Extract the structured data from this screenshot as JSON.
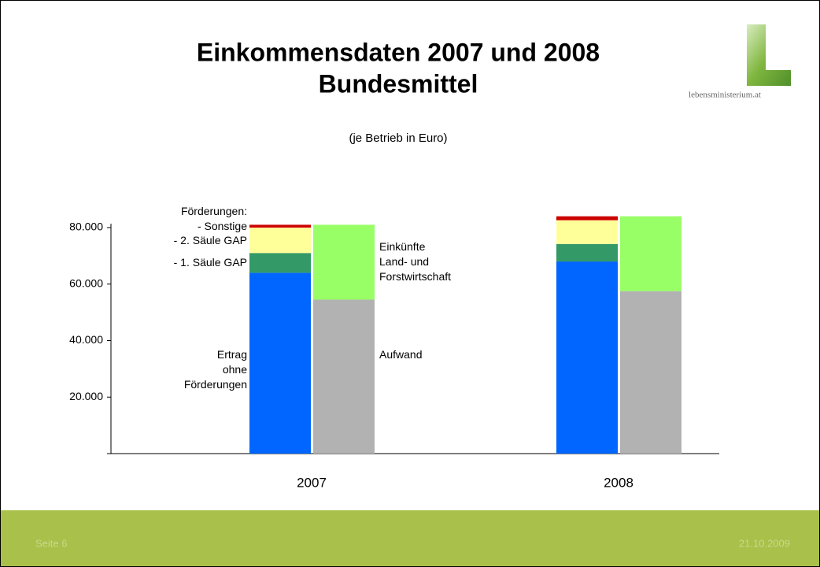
{
  "header": {
    "title_line1": "Einkommensdaten 2007 und 2008",
    "title_line2": "Bundesmittel",
    "logo_text": "lebensministerium.at"
  },
  "chart_data": {
    "type": "bar",
    "stacked": true,
    "subtitle": "(je Betrieb in Euro)",
    "legend_heading": "Förderungen:",
    "categories": [
      "2007",
      "2008"
    ],
    "series": [
      {
        "name": "Ertrag\nohne\nFörderungen",
        "color": "#0066ff",
        "stack": 0,
        "values": [
          64000,
          68000
        ]
      },
      {
        "name": "- 1. Säule GAP",
        "color": "#339966",
        "stack": 0,
        "values": [
          7000,
          6200
        ]
      },
      {
        "name": "- 2. Säule GAP",
        "color": "#ffff99",
        "stack": 0,
        "values": [
          9000,
          8400
        ]
      },
      {
        "name": "- Sonstige",
        "color": "#cc0000",
        "stack": 0,
        "values": [
          1000,
          1400
        ]
      },
      {
        "name": "Aufwand",
        "color": "#b2b2b2",
        "stack": 1,
        "values": [
          54500,
          57500
        ]
      },
      {
        "name": "Einkünfte\nLand- und\nForstwirtschaft",
        "color": "#99ff66",
        "stack": 1,
        "values": [
          26500,
          26500
        ]
      }
    ],
    "ylim": [
      0,
      80000
    ],
    "yticks": [
      {
        "value": 20000,
        "label": "20.000"
      },
      {
        "value": 40000,
        "label": "40.000"
      },
      {
        "value": 60000,
        "label": "60.000"
      },
      {
        "value": 80000,
        "label": "80.000"
      }
    ]
  },
  "footer": {
    "page": "Seite 6",
    "date": "21.10.2009"
  }
}
